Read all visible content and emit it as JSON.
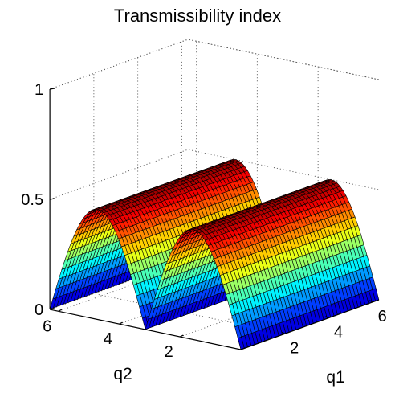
{
  "chart_data": {
    "type": "surface",
    "title": "Transmissibility index",
    "xlabel": "q1",
    "ylabel": "q2",
    "zlabel": "",
    "xlim": [
      0,
      6.28
    ],
    "ylim": [
      0,
      6.28
    ],
    "zlim": [
      0,
      1
    ],
    "x_ticks": [
      "2",
      "4",
      "6"
    ],
    "y_ticks": [
      "2",
      "4",
      "6"
    ],
    "z_ticks": [
      "0",
      "0.5",
      "1"
    ],
    "x_tick_values": [
      2,
      4,
      6
    ],
    "y_tick_values": [
      2,
      4,
      6
    ],
    "z_tick_values": [
      0,
      0.5,
      1
    ],
    "function": "z = 0.5 * |sin(q2)|, constant along q1",
    "x": [
      0,
      0.79,
      1.57,
      2.36,
      3.14,
      3.93,
      4.71,
      5.5,
      6.28
    ],
    "y": [
      0,
      0.785,
      1.571,
      2.356,
      3.142,
      3.927,
      4.712,
      5.498,
      6.283
    ],
    "z_profile_along_q2": [
      0,
      0.354,
      0.5,
      0.354,
      0,
      0.354,
      0.5,
      0.354,
      0
    ],
    "colormap": "jet",
    "grid": true,
    "box": false
  }
}
